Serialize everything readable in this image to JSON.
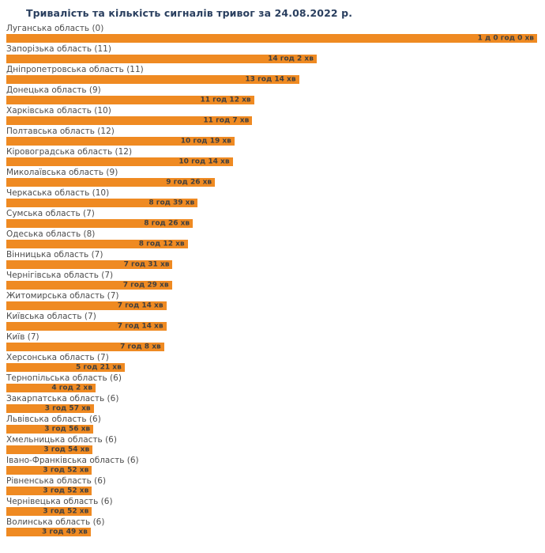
{
  "page": {
    "background_color": "#ffffff"
  },
  "chart_data": {
    "type": "bar",
    "orientation": "horizontal",
    "title": "Тривалість та кількість сигналів тривог за 24.08.2022 р.",
    "title_color": "#2a3f5f",
    "bar_color": "#EF8A22",
    "label_color": "#4d4d4d",
    "value_color": "#3f3f3f",
    "grid": false,
    "legend": false,
    "x_axis_unit": "minutes",
    "x_range": [
      0,
      1440
    ],
    "rows": [
      {
        "region": "Луганська область",
        "alert_count": 0,
        "label": "Луганська область (0)",
        "duration": "1 д 0 год 0 хв",
        "minutes": 1440
      },
      {
        "region": "Запорізька область",
        "alert_count": 11,
        "label": "Запорізька область (11)",
        "duration": "14 год 2 хв",
        "minutes": 842
      },
      {
        "region": "Дніпропетровська область",
        "alert_count": 11,
        "label": "Дніпропетровська область (11)",
        "duration": "13 год 14 хв",
        "minutes": 794
      },
      {
        "region": "Донецька область",
        "alert_count": 9,
        "label": "Донецька область (9)",
        "duration": "11 год 12 хв",
        "minutes": 672
      },
      {
        "region": "Харківська область",
        "alert_count": 10,
        "label": "Харківська область (10)",
        "duration": "11 год 7 хв",
        "minutes": 667
      },
      {
        "region": "Полтавська область",
        "alert_count": 12,
        "label": "Полтавська область (12)",
        "duration": "10 год 19 хв",
        "minutes": 619
      },
      {
        "region": "Кіровоградська область",
        "alert_count": 12,
        "label": "Кіровоградська область (12)",
        "duration": "10 год 14 хв",
        "minutes": 614
      },
      {
        "region": "Миколаївська область",
        "alert_count": 9,
        "label": "Миколаївська область (9)",
        "duration": "9 год 26 хв",
        "minutes": 566
      },
      {
        "region": "Черкаська область",
        "alert_count": 10,
        "label": "Черкаська область (10)",
        "duration": "8 год 39 хв",
        "minutes": 519
      },
      {
        "region": "Сумська область",
        "alert_count": 7,
        "label": "Сумська область (7)",
        "duration": "8 год 26 хв",
        "minutes": 506
      },
      {
        "region": "Одеська область",
        "alert_count": 8,
        "label": "Одеська область (8)",
        "duration": "8 год 12 хв",
        "minutes": 492
      },
      {
        "region": "Вінницька область",
        "alert_count": 7,
        "label": "Вінницька область (7)",
        "duration": "7 год 31 хв",
        "minutes": 451
      },
      {
        "region": "Чернігівська область",
        "alert_count": 7,
        "label": "Чернігівська область (7)",
        "duration": "7 год 29 хв",
        "minutes": 449
      },
      {
        "region": "Житомирська область",
        "alert_count": 7,
        "label": "Житомирська область (7)",
        "duration": "7 год 14 хв",
        "minutes": 434
      },
      {
        "region": "Київська область",
        "alert_count": 7,
        "label": "Київська область (7)",
        "duration": "7 год 14 хв",
        "minutes": 434
      },
      {
        "region": "Київ",
        "alert_count": 7,
        "label": "Київ (7)",
        "duration": "7 год 8 хв",
        "minutes": 428
      },
      {
        "region": "Херсонська область",
        "alert_count": 7,
        "label": "Херсонська область (7)",
        "duration": "5 год 21 хв",
        "minutes": 321
      },
      {
        "region": "Тернопільська область",
        "alert_count": 6,
        "label": "Тернопільська область (6)",
        "duration": "4 год 2 хв",
        "minutes": 242
      },
      {
        "region": "Закарпатська область",
        "alert_count": 6,
        "label": "Закарпатська область (6)",
        "duration": "3 год 57 хв",
        "minutes": 237
      },
      {
        "region": "Львівська область",
        "alert_count": 6,
        "label": "Львівська область (6)",
        "duration": "3 год 56 хв",
        "minutes": 236
      },
      {
        "region": "Хмельницька область",
        "alert_count": 6,
        "label": "Хмельницька область (6)",
        "duration": "3 год 54 хв",
        "minutes": 234
      },
      {
        "region": "Івано-Франківська область",
        "alert_count": 6,
        "label": "Івано-Франківська область (6)",
        "duration": "3 год 52 хв",
        "minutes": 232
      },
      {
        "region": "Рівненська область",
        "alert_count": 6,
        "label": "Рівненська область (6)",
        "duration": "3 год 52 хв",
        "minutes": 232
      },
      {
        "region": "Чернівецька область",
        "alert_count": 6,
        "label": "Чернівецька область (6)",
        "duration": "3 год 52 хв",
        "minutes": 232
      },
      {
        "region": "Волинська область",
        "alert_count": 6,
        "label": "Волинська область (6)",
        "duration": "3 год 49 хв",
        "minutes": 229
      }
    ]
  }
}
